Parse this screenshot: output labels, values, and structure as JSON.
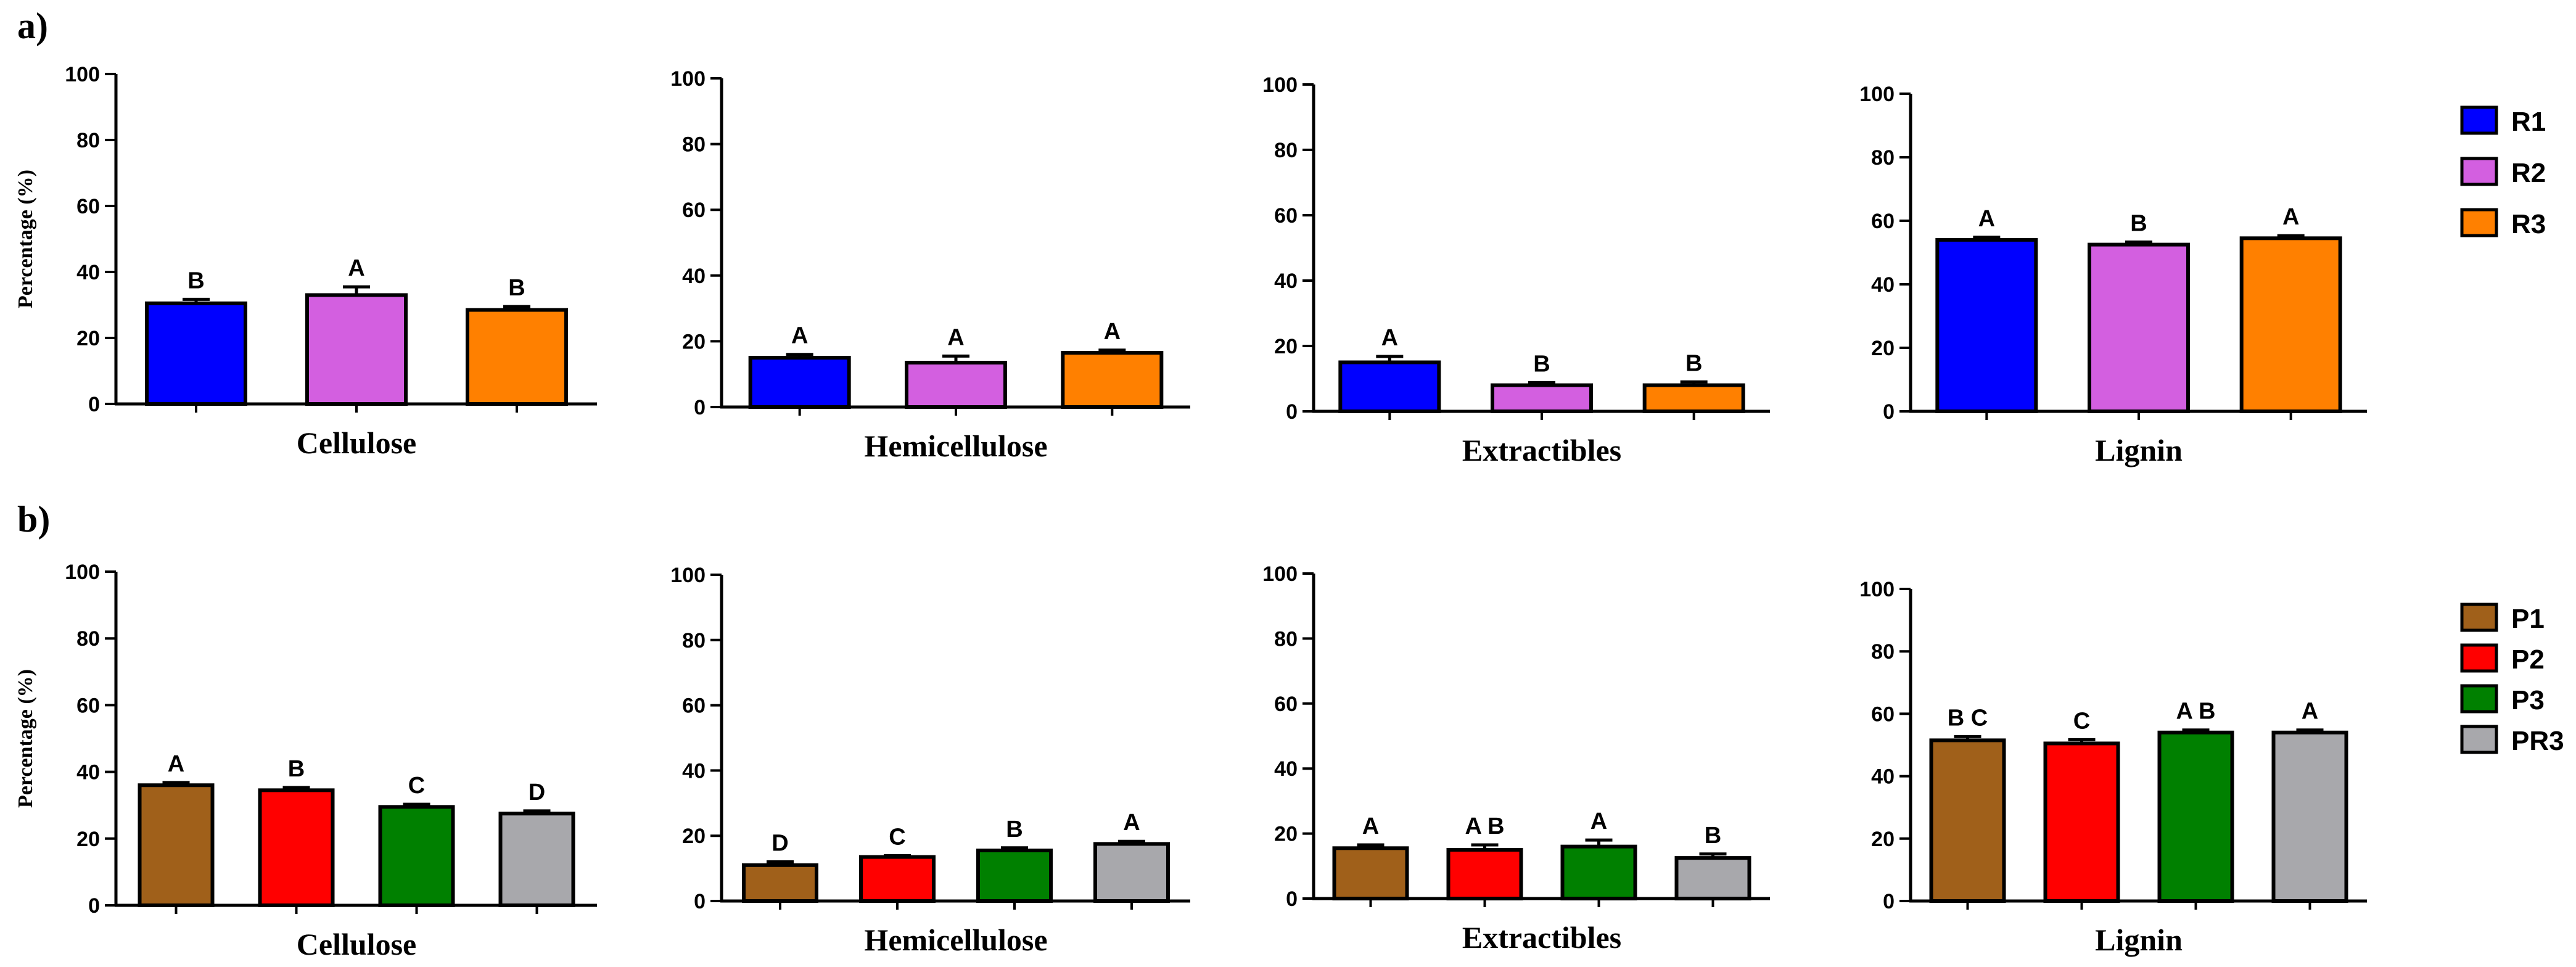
{
  "panels": {
    "a": "a)",
    "b": "b)"
  },
  "legends": {
    "a": [
      {
        "label": "R1",
        "color": "#0000ff"
      },
      {
        "label": "R2",
        "color": "#d35fe0"
      },
      {
        "label": "R3",
        "color": "#ff8000"
      }
    ],
    "b": [
      {
        "label": "P1",
        "color": "#a0601a"
      },
      {
        "label": "P2",
        "color": "#ff0000"
      },
      {
        "label": "P3",
        "color": "#008000"
      },
      {
        "label": "PR3",
        "color": "#a8a8ac"
      }
    ]
  },
  "chart_data": [
    {
      "panel": "a",
      "type": "bar",
      "title": "",
      "xlabel": "Cellulose",
      "ylabel": "Percentage (%)",
      "ylim": [
        0,
        100
      ],
      "yticks": [
        0,
        20,
        40,
        60,
        80,
        100
      ],
      "categories": [
        "R1",
        "R2",
        "R3"
      ],
      "values": [
        30.5,
        33,
        28.5
      ],
      "errors": [
        1.2,
        2.5,
        1.0
      ],
      "significance": [
        "B",
        "A",
        "B"
      ]
    },
    {
      "panel": "a",
      "type": "bar",
      "title": "",
      "xlabel": "Hemicellulose",
      "ylabel": "",
      "ylim": [
        0,
        100
      ],
      "yticks": [
        0,
        20,
        40,
        60,
        80,
        100
      ],
      "categories": [
        "R1",
        "R2",
        "R3"
      ],
      "values": [
        15,
        13.5,
        16.5
      ],
      "errors": [
        1.0,
        2.0,
        0.8
      ],
      "significance": [
        "A",
        "A",
        "A"
      ]
    },
    {
      "panel": "a",
      "type": "bar",
      "title": "",
      "xlabel": "Extractibles",
      "ylabel": "",
      "ylim": [
        0,
        100
      ],
      "yticks": [
        0,
        20,
        40,
        60,
        80,
        100
      ],
      "categories": [
        "R1",
        "R2",
        "R3"
      ],
      "values": [
        15,
        8,
        8
      ],
      "errors": [
        1.8,
        0.8,
        1.0
      ],
      "significance": [
        "A",
        "B",
        "B"
      ]
    },
    {
      "panel": "a",
      "type": "bar",
      "title": "",
      "xlabel": "Lignin",
      "ylabel": "",
      "ylim": [
        0,
        100
      ],
      "yticks": [
        0,
        20,
        40,
        60,
        80,
        100
      ],
      "categories": [
        "R1",
        "R2",
        "R3"
      ],
      "values": [
        54,
        52.5,
        54.5
      ],
      "errors": [
        0.8,
        0.8,
        0.8
      ],
      "significance": [
        "A",
        "B",
        "A"
      ]
    },
    {
      "panel": "b",
      "type": "bar",
      "title": "",
      "xlabel": "Cellulose",
      "ylabel": "Percentage (%)",
      "ylim": [
        0,
        100
      ],
      "yticks": [
        0,
        20,
        40,
        60,
        80,
        100
      ],
      "categories": [
        "P1",
        "P2",
        "P3",
        "PR3"
      ],
      "values": [
        36,
        34.5,
        29.5,
        27.5
      ],
      "errors": [
        0.8,
        0.8,
        0.8,
        0.8
      ],
      "significance": [
        "A",
        "B",
        "C",
        "D"
      ]
    },
    {
      "panel": "b",
      "type": "bar",
      "title": "",
      "xlabel": "Hemicellulose",
      "ylabel": "",
      "ylim": [
        0,
        100
      ],
      "yticks": [
        0,
        20,
        40,
        60,
        80,
        100
      ],
      "categories": [
        "P1",
        "P2",
        "P3",
        "PR3"
      ],
      "values": [
        11,
        13.5,
        15.5,
        17.5
      ],
      "errors": [
        1.0,
        0.4,
        0.8,
        0.8
      ],
      "significance": [
        "D",
        "C",
        "B",
        "A"
      ]
    },
    {
      "panel": "b",
      "type": "bar",
      "title": "",
      "xlabel": "Extractibles",
      "ylabel": "",
      "ylim": [
        0,
        100
      ],
      "yticks": [
        0,
        20,
        40,
        60,
        80,
        100
      ],
      "categories": [
        "P1",
        "P2",
        "P3",
        "PR3"
      ],
      "values": [
        15.5,
        15,
        16,
        12.5
      ],
      "errors": [
        1.0,
        1.5,
        2.0,
        1.2
      ],
      "significance": [
        "A",
        "A B",
        "A",
        "B"
      ]
    },
    {
      "panel": "b",
      "type": "bar",
      "title": "",
      "xlabel": "Lignin",
      "ylabel": "",
      "ylim": [
        0,
        100
      ],
      "yticks": [
        0,
        20,
        40,
        60,
        80,
        100
      ],
      "categories": [
        "P1",
        "P2",
        "P3",
        "PR3"
      ],
      "values": [
        51.5,
        50.5,
        54,
        54
      ],
      "errors": [
        1.2,
        1.2,
        0.8,
        0.8
      ],
      "significance": [
        "B C",
        "C",
        "A B",
        "A"
      ]
    }
  ]
}
